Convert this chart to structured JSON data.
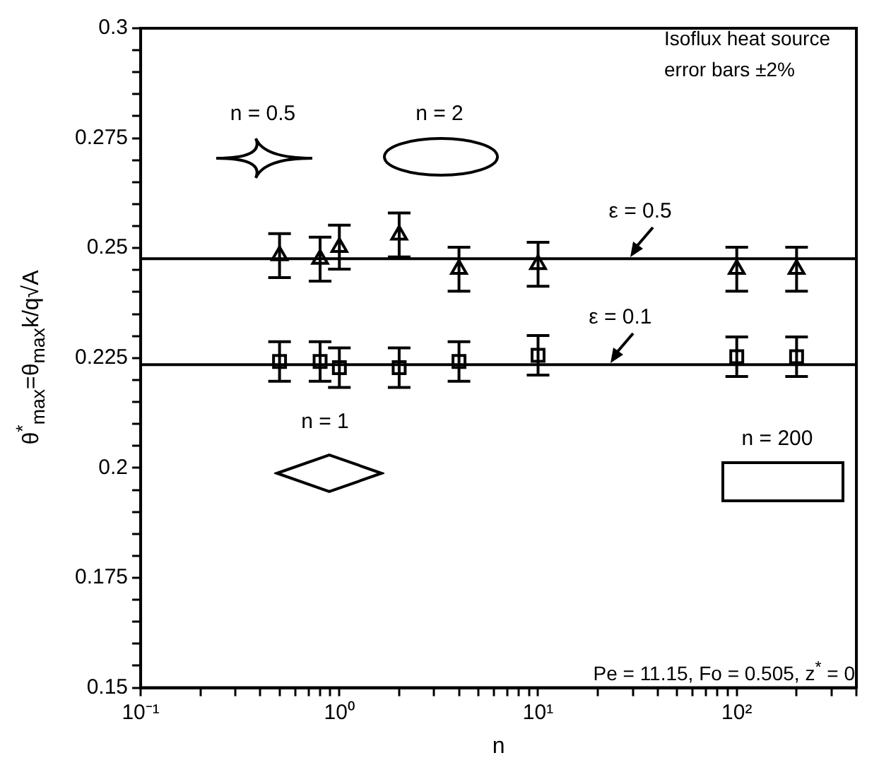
{
  "chart_data": {
    "type": "scatter",
    "xlabel": "n",
    "ylabel": "θ$^{*}$$_{max}$=θ$_{max}$k/q√A",
    "log": "x",
    "x": [
      0.5,
      0.8,
      1,
      2,
      4,
      10,
      100,
      200
    ],
    "series": [
      {
        "color": "#000000",
        "marker": "triangle",
        "values": [
          0.2483,
          0.2475,
          0.2502,
          0.253,
          0.2452,
          0.2463,
          0.2452,
          0.2452
        ],
        "errors": [
          0.005,
          0.005,
          0.005,
          0.005,
          0.005,
          0.005,
          0.005,
          0.005
        ]
      },
      {
        "color": "#000000",
        "marker": "square",
        "values": [
          0.2242,
          0.2242,
          0.2228,
          0.2228,
          0.2242,
          0.2256,
          0.2253,
          0.2253
        ],
        "errors": [
          0.0045,
          0.0045,
          0.0045,
          0.0045,
          0.0045,
          0.0045,
          0.0045,
          0.0045
        ]
      }
    ],
    "xlim": [
      0.1,
      400
    ],
    "xticks": [
      {
        "value": 0.1,
        "label": "10⁻¹"
      },
      {
        "value": 0.2,
        "label": null
      },
      {
        "value": 0.3,
        "label": null
      },
      {
        "value": 0.4,
        "label": null
      },
      {
        "value": 0.5,
        "label": null
      },
      {
        "value": 0.6,
        "label": null
      },
      {
        "value": 0.7,
        "label": null
      },
      {
        "value": 0.8,
        "label": null
      },
      {
        "value": 0.9,
        "label": null
      },
      {
        "value": 1,
        "label": "10⁰"
      },
      {
        "value": 2,
        "label": null
      },
      {
        "value": 3,
        "label": null
      },
      {
        "value": 4,
        "label": null
      },
      {
        "value": 5,
        "label": null
      },
      {
        "value": 6,
        "label": null
      },
      {
        "value": 7,
        "label": null
      },
      {
        "value": 8,
        "label": null
      },
      {
        "value": 9,
        "label": null
      },
      {
        "value": 10,
        "label": "10¹"
      },
      {
        "value": 20,
        "label": null
      },
      {
        "value": 30,
        "label": null
      },
      {
        "value": 40,
        "label": null
      },
      {
        "value": 50,
        "label": null
      },
      {
        "value": 60,
        "label": null
      },
      {
        "value": 70,
        "label": null
      },
      {
        "value": 80,
        "label": null
      },
      {
        "value": 90,
        "label": null
      },
      {
        "value": 100,
        "label": "10²"
      },
      {
        "value": 200,
        "label": null
      },
      {
        "value": 300,
        "label": null
      },
      {
        "value": 400,
        "label": null
      }
    ],
    "ylim": [
      0.15,
      0.3
    ],
    "yticks": [
      0.15,
      {
        "value": 0.155,
        "label": null
      },
      {
        "value": 0.16,
        "label": null
      },
      {
        "value": 0.165,
        "label": null
      },
      {
        "value": 0.17,
        "label": null
      },
      0.175,
      {
        "value": 0.18,
        "label": null
      },
      {
        "value": 0.185,
        "label": null
      },
      {
        "value": 0.19,
        "label": null
      },
      {
        "value": 0.195,
        "label": null
      },
      0.2,
      {
        "value": 0.205,
        "label": null
      },
      {
        "value": 0.21,
        "label": null
      },
      {
        "value": 0.215,
        "label": null
      },
      {
        "value": 0.22,
        "label": null
      },
      0.225,
      {
        "value": 0.23,
        "label": null
      },
      {
        "value": 0.235,
        "label": null
      },
      {
        "value": 0.24,
        "label": null
      },
      {
        "value": 0.245,
        "label": null
      },
      0.25,
      {
        "value": 0.255,
        "label": null
      },
      {
        "value": 0.26,
        "label": null
      },
      {
        "value": 0.265,
        "label": null
      },
      {
        "value": 0.27,
        "label": null
      },
      0.275,
      {
        "value": 0.28,
        "label": null
      },
      {
        "value": 0.285,
        "label": null
      },
      {
        "value": 0.29,
        "label": null
      },
      {
        "value": 0.295,
        "label": null
      },
      0.3
    ],
    "ref_lines": [
      {
        "axis": "y",
        "value": 0.2476,
        "color": "#000000"
      },
      {
        "axis": "y",
        "value": 0.2235,
        "color": "#000000"
      }
    ],
    "annotations": [
      "Isoflux heat source",
      "error bars ±2%",
      "n = 0.5",
      "n = 2",
      "n = 1",
      "n = 200",
      "Pe = 11.15, Fo = 0.505, z$^{*}$ = 0",
      {
        "text": "ε = 0.5",
        "x": 29,
        "y": 0.2476
      },
      {
        "text": "ε = 0.1",
        "x": 23,
        "y": 0.2235
      }
    ]
  }
}
